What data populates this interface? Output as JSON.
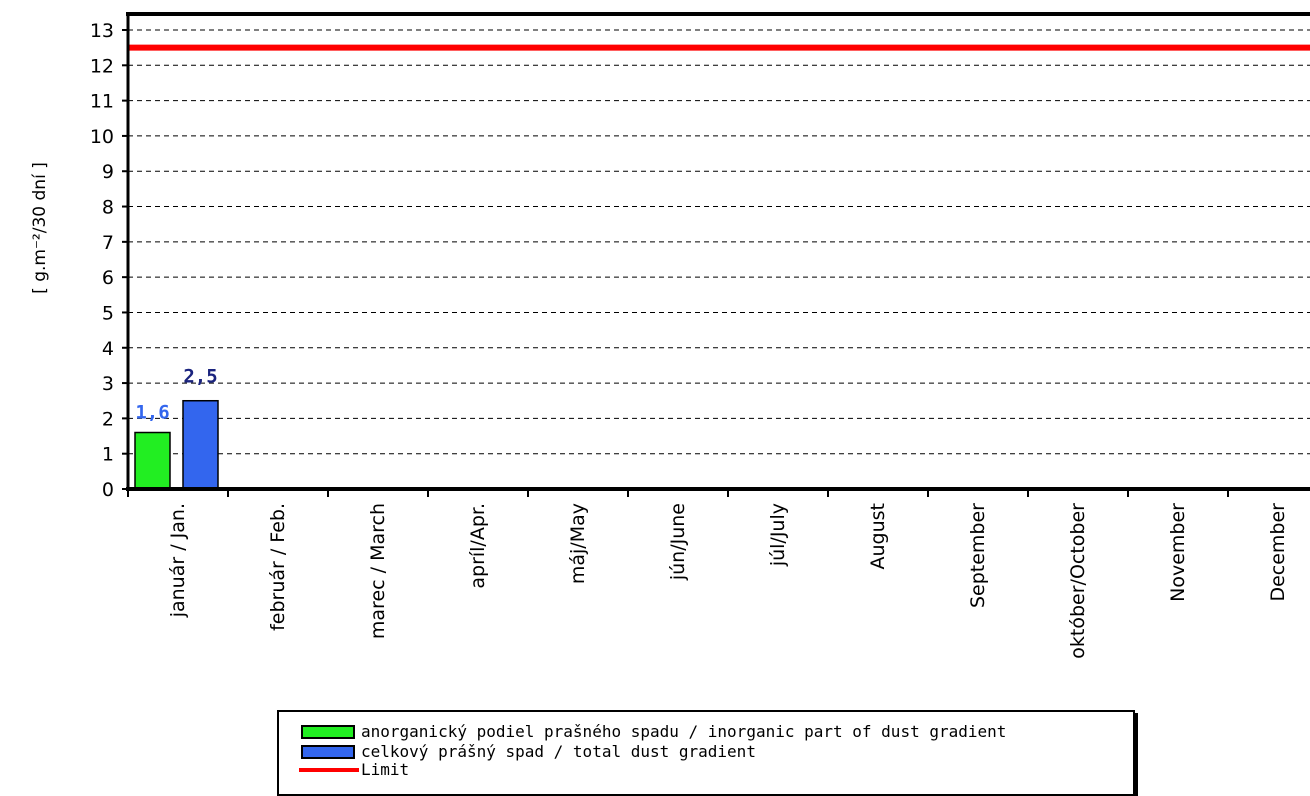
{
  "chart_data": {
    "type": "bar",
    "categories": [
      "január / Jan.",
      "február / Feb.",
      "marec / March",
      "apríl/Apr.",
      "máj/May",
      "jún/June",
      "júl/July",
      "August",
      "September",
      "október/October",
      "November",
      "December"
    ],
    "series": [
      {
        "name": "anorganický podiel prašného spadu / inorganic part of dust gradient",
        "color": "#22ee22",
        "values": [
          1.6,
          null,
          null,
          null,
          null,
          null,
          null,
          null,
          null,
          null,
          null,
          null
        ],
        "labels": [
          "1,6"
        ]
      },
      {
        "name": "celkový prášný spad / total dust gradient",
        "color": "#3366ee",
        "values": [
          2.5,
          null,
          null,
          null,
          null,
          null,
          null,
          null,
          null,
          null,
          null,
          null
        ],
        "labels": [
          "2,5"
        ]
      }
    ],
    "limit": {
      "name": "Limit",
      "value": 12.5,
      "color": "#ff0000"
    },
    "ylabel": "[ g.m⁻²/30 dní ]",
    "ylim": [
      0,
      13
    ],
    "yticks": [
      0,
      1,
      2,
      3,
      4,
      5,
      6,
      7,
      8,
      9,
      10,
      11,
      12,
      13
    ],
    "grid": "dashed horizontal",
    "legend_position": "bottom"
  },
  "label_colors": [
    "#3366ee",
    "#1a237e"
  ]
}
